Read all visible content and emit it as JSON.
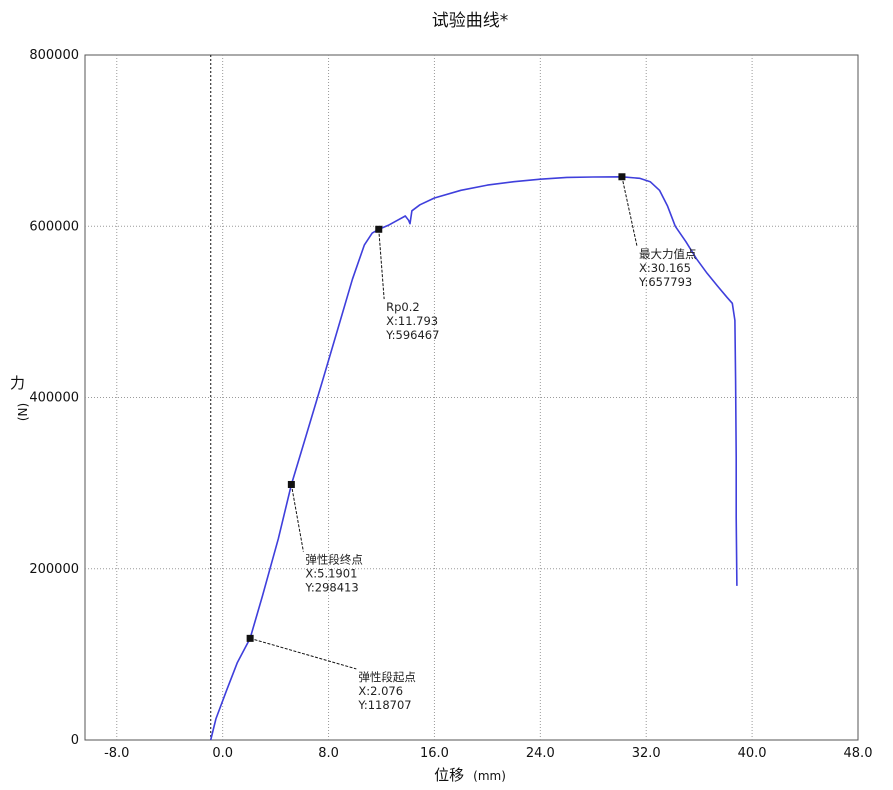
{
  "chart_data": {
    "type": "line",
    "title": "试验曲线*",
    "xlabel": "位移",
    "xlabel_unit": "(mm)",
    "ylabel": "力",
    "ylabel_unit": "(N)",
    "xlim": [
      -10.4,
      48.0
    ],
    "ylim": [
      0,
      800000
    ],
    "x_ticks": [
      -8.0,
      0.0,
      8.0,
      16.0,
      24.0,
      32.0,
      40.0,
      48.0
    ],
    "x_tick_labels": [
      "-8.0",
      "0.0",
      "8.0",
      "16.0",
      "24.0",
      "32.0",
      "40.0",
      "48.0"
    ],
    "y_ticks": [
      0,
      200000,
      400000,
      600000,
      800000
    ],
    "y_tick_labels": [
      "0",
      "200000",
      "400000",
      "600000",
      "800000"
    ],
    "grid": true,
    "zero_line_x": -0.9,
    "series": [
      {
        "color": "#3f3fdc",
        "x": [
          -0.9,
          -0.5,
          0.3,
          1.1,
          2.076,
          3.0,
          4.2,
          5.19,
          6.3,
          7.5,
          8.7,
          9.8,
          10.7,
          11.3,
          11.793,
          12.5,
          13.2,
          13.8,
          14.05,
          14.15,
          14.3,
          14.9,
          16.0,
          18.0,
          20.0,
          22.0,
          24.0,
          26.0,
          28.0,
          30.165,
          31.5,
          32.3,
          33.0,
          33.6,
          34.2,
          35.0,
          35.8,
          36.6,
          37.4,
          38.1,
          38.5,
          38.7,
          38.75,
          38.8,
          38.8,
          38.85
        ],
        "y": [
          0,
          25000,
          58000,
          90000,
          118707,
          168000,
          235000,
          298413,
          355000,
          417000,
          480000,
          538000,
          578000,
          592000,
          596467,
          601000,
          607000,
          612000,
          607000,
          603000,
          618000,
          625000,
          633000,
          642000,
          648000,
          652000,
          655000,
          657000,
          657500,
          657793,
          656000,
          652000,
          642000,
          624000,
          600000,
          582000,
          562000,
          545000,
          530000,
          517000,
          510000,
          490000,
          420000,
          330000,
          260000,
          180000
        ]
      }
    ],
    "annotations": [
      {
        "name": "Rp0.2",
        "x": 11.793,
        "y": 596467,
        "label_x_text": "X:11.793",
        "label_y_text": "Y:596467",
        "label_anchor_x": 12.2,
        "label_anchor_y": 515000
      },
      {
        "name": "最大力值点",
        "x": 30.165,
        "y": 657793,
        "label_x_text": "X:30.165",
        "label_y_text": "Y:657793",
        "label_anchor_x": 31.3,
        "label_anchor_y": 577000
      },
      {
        "name": "弹性段终点",
        "x": 5.1901,
        "y": 298413,
        "label_x_text": "X:5.1901",
        "label_y_text": "Y:298413",
        "label_anchor_x": 6.1,
        "label_anchor_y": 220000
      },
      {
        "name": "弹性段起点",
        "x": 2.076,
        "y": 118707,
        "label_x_text": "X:2.076",
        "label_y_text": "Y:118707",
        "label_anchor_x": 10.1,
        "label_anchor_y": 83000
      }
    ]
  }
}
